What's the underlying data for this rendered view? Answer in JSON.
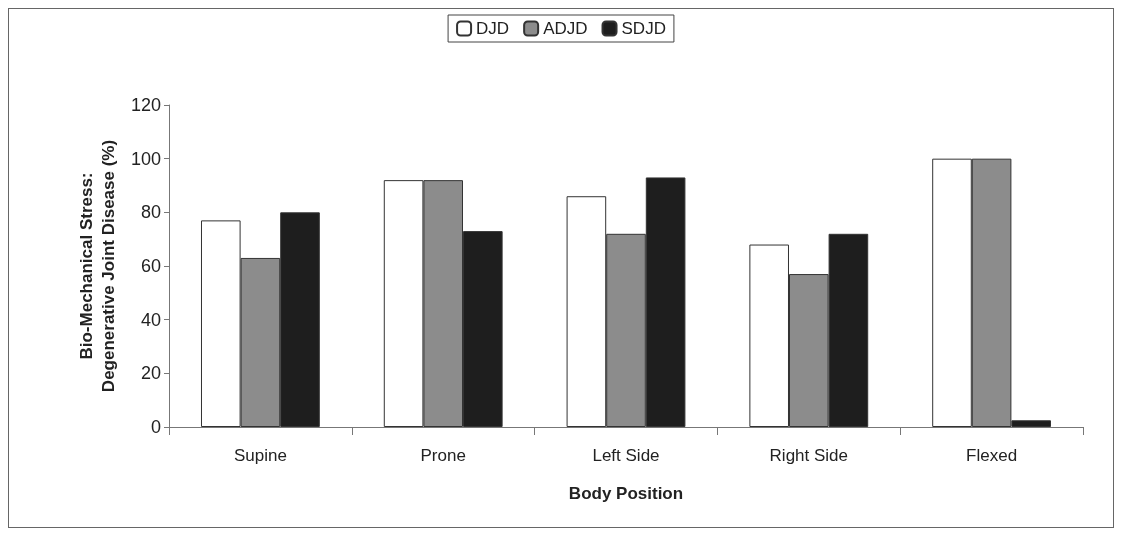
{
  "chart_data": {
    "type": "bar",
    "xlabel": "Body Position",
    "ylabel": "Bio-Mechanical Stress:\nDegenerative Joint Disease (%)",
    "categories": [
      "Supine",
      "Prone",
      "Left Side",
      "Right Side",
      "Flexed"
    ],
    "series": [
      {
        "name": "DJD",
        "color": "#ffffff",
        "values": [
          77,
          92,
          86,
          68,
          100
        ]
      },
      {
        "name": "ADJD",
        "color": "#8c8c8c",
        "values": [
          63,
          92,
          72,
          57,
          100
        ]
      },
      {
        "name": "SDJD",
        "color": "#1e1e1e",
        "values": [
          80,
          73,
          93,
          72,
          2.5
        ]
      }
    ],
    "ylim": [
      0,
      120
    ],
    "yticks": [
      0,
      20,
      40,
      60,
      80,
      100,
      120
    ],
    "grid": false,
    "legend": "top"
  }
}
